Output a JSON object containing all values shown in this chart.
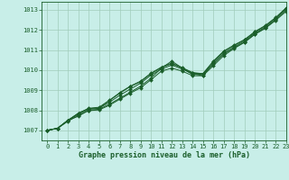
{
  "title": "Graphe pression niveau de la mer (hPa)",
  "xlim": [
    -0.5,
    23
  ],
  "ylim": [
    1006.5,
    1013.4
  ],
  "yticks": [
    1007,
    1008,
    1009,
    1010,
    1011,
    1012,
    1013
  ],
  "xticks": [
    0,
    1,
    2,
    3,
    4,
    5,
    6,
    7,
    8,
    9,
    10,
    11,
    12,
    13,
    14,
    15,
    16,
    17,
    18,
    19,
    20,
    21,
    22,
    23
  ],
  "bg_color": "#c8eee8",
  "grid_color": "#a0ccbb",
  "line_color": "#1a5e2a",
  "lines": [
    [
      1007.0,
      1007.1,
      1007.5,
      1007.7,
      1008.0,
      1008.05,
      1008.3,
      1008.6,
      1008.9,
      1009.2,
      1009.6,
      1010.1,
      1010.45,
      1010.1,
      1009.78,
      1009.8,
      1010.3,
      1010.8,
      1011.1,
      1011.4,
      1011.8,
      1012.1,
      1012.5,
      1013.0
    ],
    [
      1007.0,
      1007.1,
      1007.5,
      1007.8,
      1008.05,
      1008.1,
      1008.4,
      1008.75,
      1009.05,
      1009.35,
      1009.75,
      1010.05,
      1010.25,
      1010.05,
      1009.82,
      1009.72,
      1010.35,
      1010.85,
      1011.15,
      1011.45,
      1011.85,
      1012.15,
      1012.55,
      1013.05
    ],
    [
      1007.0,
      1007.1,
      1007.5,
      1007.85,
      1008.1,
      1008.15,
      1008.5,
      1008.88,
      1009.2,
      1009.45,
      1009.85,
      1010.15,
      1010.35,
      1010.12,
      1009.88,
      1009.82,
      1010.45,
      1010.95,
      1011.25,
      1011.52,
      1011.92,
      1012.22,
      1012.62,
      1013.1
    ],
    [
      1007.0,
      1007.1,
      1007.5,
      1007.85,
      1008.08,
      1008.12,
      1008.48,
      1008.85,
      1009.18,
      1009.42,
      1009.82,
      1010.12,
      1010.32,
      1010.1,
      1009.85,
      1009.82,
      1010.42,
      1010.92,
      1011.22,
      1011.5,
      1011.9,
      1012.2,
      1012.6,
      1013.08
    ],
    [
      1007.0,
      1007.1,
      1007.45,
      1007.75,
      1007.98,
      1008.02,
      1008.25,
      1008.55,
      1008.85,
      1009.12,
      1009.52,
      1009.95,
      1010.1,
      1009.95,
      1009.72,
      1009.72,
      1010.22,
      1010.72,
      1011.08,
      1011.38,
      1011.78,
      1012.08,
      1012.48,
      1012.92
    ]
  ]
}
